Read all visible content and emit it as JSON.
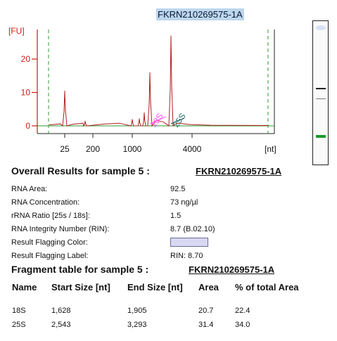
{
  "sample_name": "FKRN210269575-1A",
  "chart_data": {
    "type": "line",
    "y_unit": "[FU]",
    "x_unit": "[nt]",
    "y_ticks": [
      "20",
      "10",
      "0"
    ],
    "x_ticks": [
      "25",
      "200",
      "1000",
      "4000"
    ],
    "peak_labels": [
      {
        "text": "18S",
        "color": "#ff55ff"
      },
      {
        "text": "25S",
        "color": "#2a6e6e"
      }
    ],
    "trace_color": "#b02020",
    "axis_color": "#d01818",
    "marker_color": "#2f9a2f",
    "series": [
      {
        "x_nt": [
          25,
          25,
          25,
          25,
          200,
          1000,
          1628,
          1628,
          1628,
          1905,
          2543,
          2543,
          2543,
          3293,
          4000
        ],
        "y_fu": [
          0,
          6,
          10.5,
          0,
          1.5,
          0.8,
          4,
          6,
          16,
          3,
          25,
          27,
          17,
          0.5,
          0
        ]
      }
    ]
  },
  "gel": {
    "bands": [
      {
        "color": "#d6e2f7"
      },
      {
        "color": "#222222"
      },
      {
        "color": "#777777"
      },
      {
        "color": "#1b9a2a"
      }
    ]
  },
  "overall": {
    "heading": "Overall Results for sample 5  :",
    "sample": "FKRN210269575-1A",
    "rows": [
      {
        "label": "RNA Area:",
        "value": "92.5"
      },
      {
        "label": "RNA Concentration:",
        "value": "73 ng/µl"
      },
      {
        "label": "rRNA Ratio [25s / 18s]:",
        "value": "1.5"
      },
      {
        "label": "RNA Integrity Number (RIN):",
        "value": "8.7  (B.02.10)"
      },
      {
        "label": "Result Flagging Color:",
        "value": ""
      },
      {
        "label": "Result Flagging Label:",
        "value": "RIN: 8.70"
      }
    ]
  },
  "fragments": {
    "heading": "Fragment table for sample 5  :",
    "sample": "FKRN210269575-1A",
    "columns": [
      "Name",
      "Start Size [nt]",
      "End Size [nt]",
      "Area",
      "% of total Area"
    ],
    "rows": [
      [
        "18S",
        "1,628",
        "1,905",
        "20.7",
        "22.4"
      ],
      [
        "25S",
        "2,543",
        "3,293",
        "31.4",
        "34.0"
      ]
    ]
  }
}
